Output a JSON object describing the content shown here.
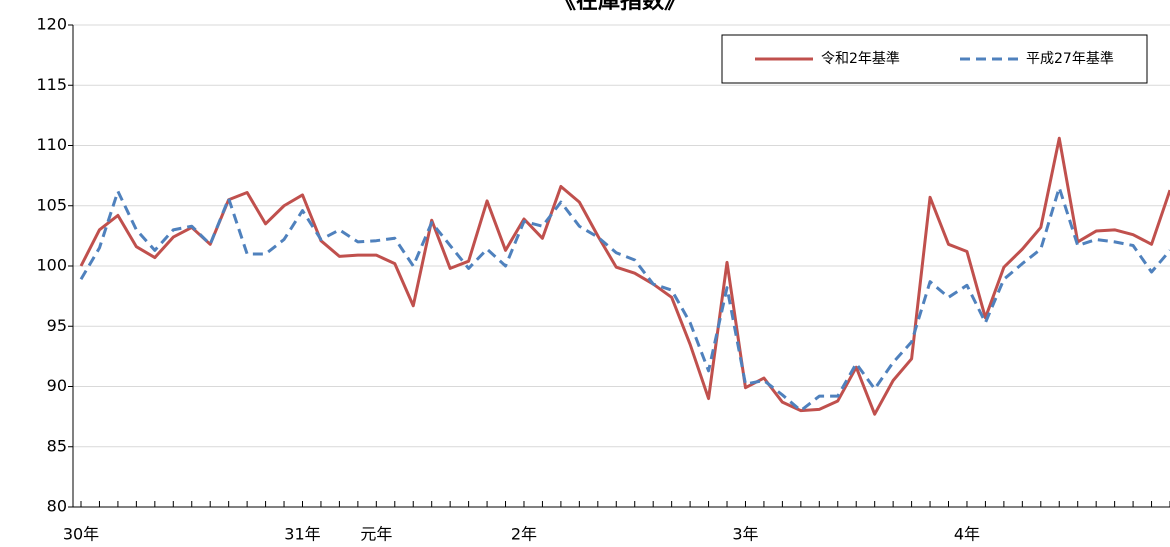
{
  "chart_data": {
    "type": "line",
    "title": "《在庫指数》",
    "categories": [
      "30年",
      null,
      null,
      null,
      null,
      null,
      null,
      null,
      null,
      null,
      null,
      null,
      "31年",
      null,
      null,
      null,
      "元年",
      null,
      null,
      null,
      null,
      null,
      null,
      null,
      "2年",
      null,
      null,
      null,
      null,
      null,
      null,
      null,
      null,
      null,
      null,
      null,
      "3年",
      null,
      null,
      null,
      null,
      null,
      null,
      null,
      null,
      null,
      null,
      null,
      "4年",
      null,
      null,
      null,
      null,
      null,
      null,
      null,
      null,
      null,
      null,
      null
    ],
    "series": [
      {
        "name": "令和2年基準",
        "color": "#c0504d",
        "dash": false,
        "values": [
          100,
          103,
          104.2,
          101.6,
          100.7,
          102.4,
          103.2,
          101.8,
          105.5,
          106.1,
          103.5,
          105,
          105.9,
          102.1,
          100.8,
          100.9,
          100.9,
          100.2,
          96.7,
          103.8,
          99.8,
          100.4,
          105.4,
          101.3,
          103.9,
          102.3,
          106.6,
          105.3,
          102.5,
          99.9,
          99.4,
          98.5,
          97.4,
          93.5,
          89.0,
          100.3,
          89.9,
          90.7,
          88.7,
          88.0,
          88.1,
          88.8,
          91.6,
          87.7,
          90.5,
          92.3,
          105.7,
          101.8,
          101.2,
          95.7,
          99.9,
          101.4,
          103.2,
          110.6,
          102.0,
          102.9,
          103.0,
          102.6,
          101.8,
          106.3
        ]
      },
      {
        "name": "平成27年基準",
        "color": "#4f81bd",
        "dash": true,
        "values": [
          98.9,
          101.5,
          106.2,
          103.0,
          101.3,
          103.0,
          103.3,
          101.8,
          105.6,
          101.0,
          101.0,
          102.2,
          104.6,
          102.2,
          103.0,
          102.0,
          102.1,
          102.3,
          100.0,
          103.6,
          101.7,
          99.8,
          101.4,
          100.0,
          103.7,
          103.3,
          105.3,
          103.3,
          102.4,
          101.1,
          100.5,
          98.5,
          98.0,
          95.3,
          91.3,
          98.2,
          90.2,
          90.5,
          89.3,
          88.0,
          89.2,
          89.2,
          91.9,
          89.8,
          92.0,
          93.7,
          98.7,
          97.4,
          98.4,
          95.3,
          98.9,
          100.2,
          101.4,
          106.5,
          101.7,
          102.2,
          102.0,
          101.7,
          99.5,
          101.3
        ]
      }
    ],
    "ylim": [
      80,
      120
    ],
    "yticks": [
      80,
      85,
      90,
      95,
      100,
      105,
      110,
      115,
      120
    ],
    "grid": true
  }
}
